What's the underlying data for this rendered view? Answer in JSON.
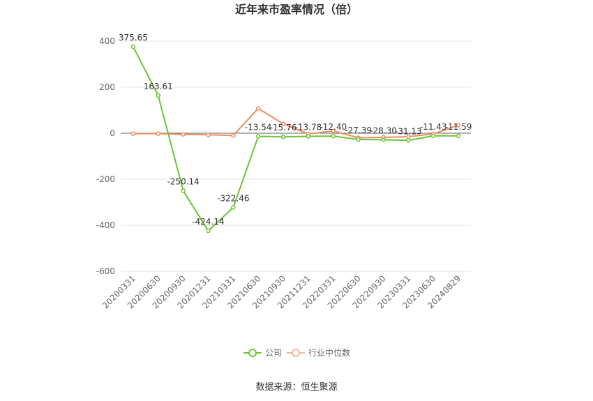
{
  "chart_data": {
    "type": "line",
    "title": "近年来市盈率情况（倍）",
    "categories": [
      "20200331",
      "20200630",
      "20200930",
      "20201231",
      "20210331",
      "20210630",
      "20210930",
      "20211231",
      "20220331",
      "20220630",
      "20220930",
      "20230331",
      "20230630",
      "20240829"
    ],
    "series": [
      {
        "name": "公司",
        "color": "#6ac535",
        "values": [
          375.65,
          163.61,
          -250.14,
          -424.14,
          -322.46,
          -13.54,
          -15.76,
          -13.78,
          -12.4,
          -27.39,
          -28.3,
          -31.13,
          -11.43,
          -11.59
        ],
        "labels": [
          "375.65",
          "163.61",
          "-250.14",
          "-424.14",
          "-322.46",
          "-13.54",
          "-15.76",
          "-13.78",
          "-12.40",
          "-27.39",
          "-28.30",
          "-31.13",
          "-11.43",
          "-11.59"
        ]
      },
      {
        "name": "行业中位数",
        "color": "#f08b5e",
        "values": [
          -2,
          -2,
          -5,
          -7,
          -10,
          108,
          40,
          -3,
          10,
          -20,
          -18,
          -15,
          -3,
          35
        ]
      }
    ],
    "ylim": [
      -600,
      400
    ],
    "yticks": [
      400,
      200,
      0,
      -200,
      -400,
      -600
    ],
    "ytick_labels": [
      "400",
      "200",
      "0",
      "-200",
      "-400",
      "-600"
    ],
    "grid": true,
    "legend_position": "bottom"
  },
  "legend": {
    "company": "公司",
    "industry": "行业中位数"
  },
  "source": "数据来源：恒生聚源"
}
